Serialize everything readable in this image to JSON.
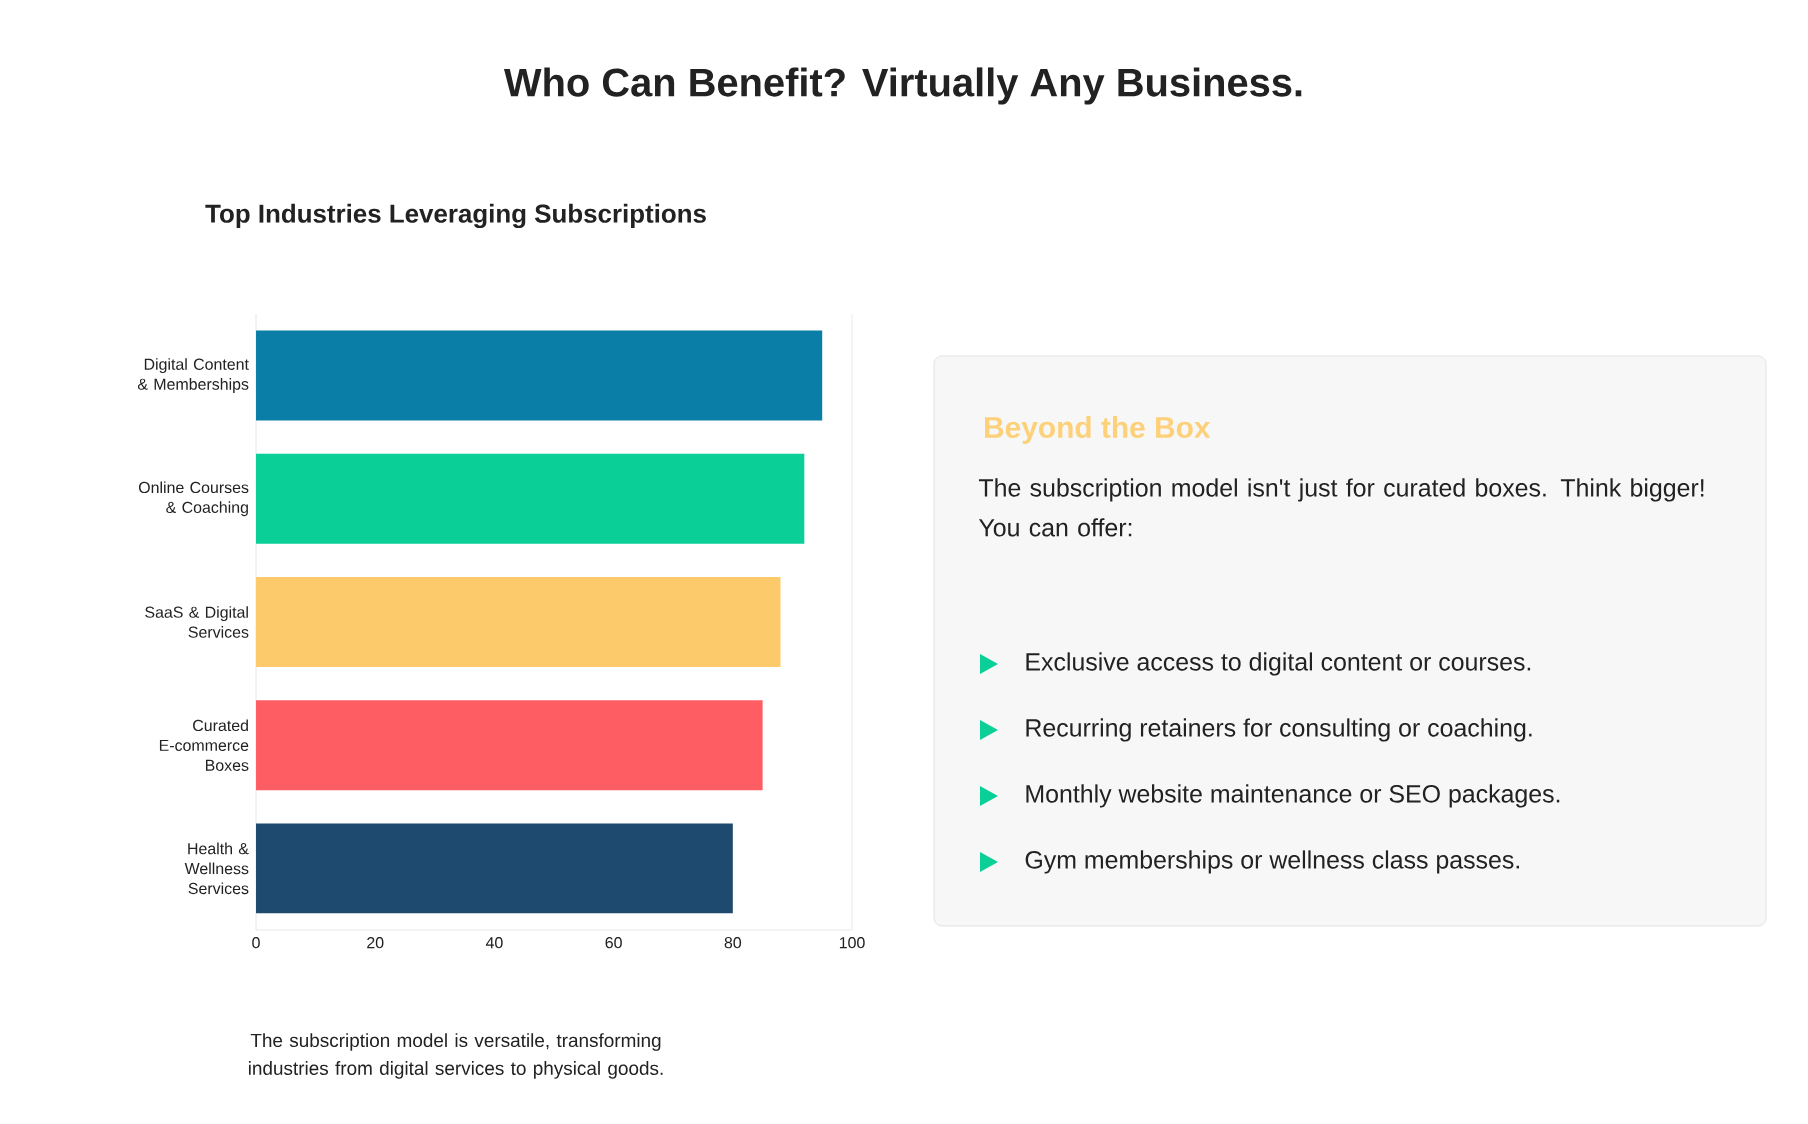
{
  "chart_data": [
    {
      "type": "bar",
      "orientation": "horizontal",
      "title": "Who Can Benefit? Virtually Any Business.",
      "subtitle": "Top Industries Leveraging Subscriptions",
      "categories": [
        "Digital Content & Memberships",
        "Online Courses & Coaching",
        "SaaS & Digital Services",
        "Curated E-commerce Boxes",
        "Health & Wellness Services"
      ],
      "values": [
        95,
        92,
        88,
        85,
        80
      ],
      "colors": [
        "#0a7ea6",
        "#0acf97",
        "#fdca6b",
        "#fe5e63",
        "#1d4a6e"
      ],
      "xlim": [
        0,
        100
      ],
      "xticks": [
        0,
        20,
        40,
        60,
        80,
        100
      ],
      "annotations": [
        "The subscription model is versatile, transforming industries from digital services to physical goods."
      ]
    },
    {
      "type": "other",
      "title": "Beyond the Box",
      "subtitle": "The subscription model isn't just for curated boxes. Think bigger! You can offer:",
      "annotations": [
        "Exclusive access to digital content or courses.",
        "Recurring retainers for consulting or coaching.",
        "Monthly website maintenance or SEO packages.",
        "Gym memberships or wellness class passes."
      ]
    }
  ]
}
